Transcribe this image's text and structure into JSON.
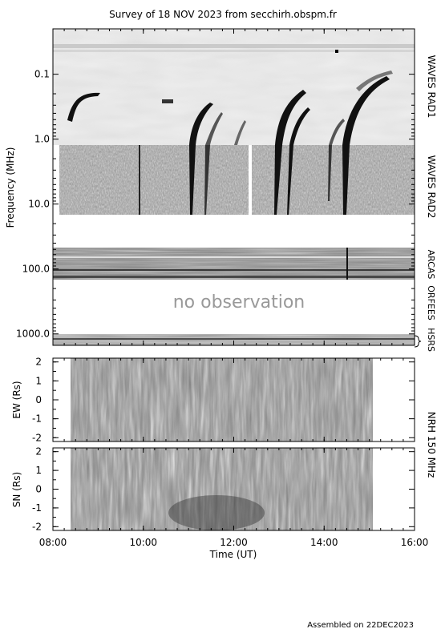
{
  "title": "Survey of 18 NOV 2023 from secchirh.obspm.fr",
  "footer": "Assembled on 22DEC2023",
  "no_observation_text": "no observation",
  "chart_data": [
    {
      "type": "heatmap",
      "panel": "dynamic-spectrum",
      "ylabel": "Frequency (MHz)",
      "y_scale": "log",
      "y_inverted": true,
      "ylim": [
        0.02,
        1500
      ],
      "y_ticks": [
        {
          "value": 0.1,
          "label": "0.1"
        },
        {
          "value": 1.0,
          "label": "1.0"
        },
        {
          "value": 10.0,
          "label": "10.0"
        },
        {
          "value": 100.0,
          "label": "100.0"
        },
        {
          "value": 1000.0,
          "label": "1000.0"
        }
      ],
      "xlim": [
        "08:00",
        "16:00"
      ],
      "instruments": [
        {
          "name": "WAVES RAD1",
          "freq_range_mhz": [
            0.02,
            1.075
          ]
        },
        {
          "name": "WAVES RAD2",
          "freq_range_mhz": [
            1.075,
            16.025
          ]
        },
        {
          "name": "ARCAS",
          "freq_range_mhz": [
            40,
            120
          ]
        },
        {
          "name": "ORFEES",
          "freq_range_mhz": [
            140,
            1000
          ],
          "status": "no observation"
        },
        {
          "name": "HSRS",
          "freq_range_mhz": [
            1000,
            1500
          ]
        }
      ],
      "right_labels": [
        "WAVES RAD1",
        "WAVES RAD2",
        "ARCAS",
        "ORFEES",
        "HSRS"
      ]
    },
    {
      "type": "heatmap",
      "panel": "NRH EW",
      "ylabel": "EW (Rs)",
      "ylim": [
        -2.2,
        2.2
      ],
      "y_ticks": [
        2,
        1,
        0,
        -1,
        -2
      ],
      "observed_range": [
        "08:22",
        "15:03"
      ]
    },
    {
      "type": "heatmap",
      "panel": "NRH SN",
      "ylabel": "SN (Rs)",
      "ylim": [
        -2.2,
        2.2
      ],
      "y_ticks": [
        2,
        1,
        0,
        -1,
        -2
      ],
      "observed_range": [
        "08:22",
        "15:03"
      ]
    }
  ],
  "nrh_label": "NRH 150 MHz",
  "x_axis": {
    "label": "Time (UT)",
    "ticks": [
      "08:00",
      "10:00",
      "12:00",
      "14:00",
      "16:00"
    ]
  }
}
